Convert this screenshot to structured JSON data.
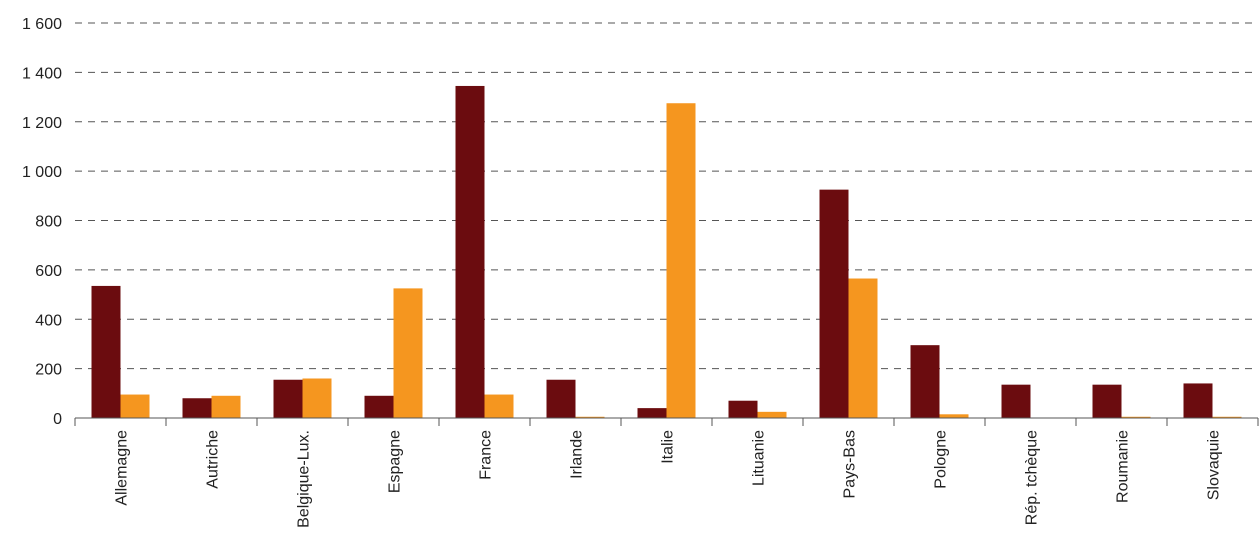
{
  "chart_data": {
    "type": "bar",
    "categories": [
      "Allemagne",
      "Autriche",
      "Belgique-Lux.",
      "Espagne",
      "France",
      "Irlande",
      "Italie",
      "Lituanie",
      "Pays-Bas",
      "Pologne",
      "Rép. tchèque",
      "Roumanie",
      "Slovaquie"
    ],
    "series": [
      {
        "values": [
          535,
          80,
          155,
          90,
          1345,
          155,
          40,
          70,
          925,
          295,
          135,
          135,
          140
        ],
        "color": "#6b0c0f"
      },
      {
        "values": [
          95,
          90,
          160,
          525,
          95,
          5,
          1275,
          25,
          565,
          15,
          0,
          5,
          5
        ],
        "color": "#f5961f"
      }
    ],
    "ylim": [
      0,
      1600
    ],
    "yticks": [
      0,
      200,
      400,
      600,
      800,
      1000,
      1200,
      1400,
      1600
    ],
    "ytick_labels": [
      "0",
      "200",
      "400",
      "600",
      "800",
      "1 000",
      "1 200",
      "1 400",
      "1 600"
    ],
    "grid": true,
    "legend": false
  }
}
